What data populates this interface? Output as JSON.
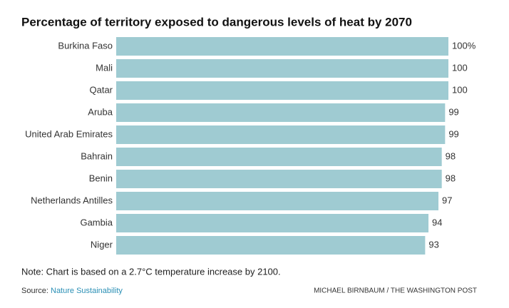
{
  "chart_data": {
    "type": "barh",
    "title": "Percentage of territory exposed to dangerous levels of heat by 2070",
    "categories": [
      "Burkina Faso",
      "Mali",
      "Qatar",
      "Aruba",
      "United Arab Emirates",
      "Bahrain",
      "Benin",
      "Netherlands Antilles",
      "Gambia",
      "Niger"
    ],
    "values": [
      100,
      100,
      100,
      99,
      99,
      98,
      98,
      97,
      94,
      93
    ],
    "value_labels": [
      "100%",
      "100",
      "100",
      "99",
      "99",
      "98",
      "98",
      "97",
      "94",
      "93"
    ],
    "color": "#9fcbd2",
    "xlim": [
      0,
      100
    ],
    "note": "Note: Chart is based on a 2.7°C temperature increase by 2100.",
    "source_label": "Source:",
    "source": "Nature Sustainability",
    "credit": "MICHAEL BIRNBAUM / THE WASHINGTON POST"
  }
}
